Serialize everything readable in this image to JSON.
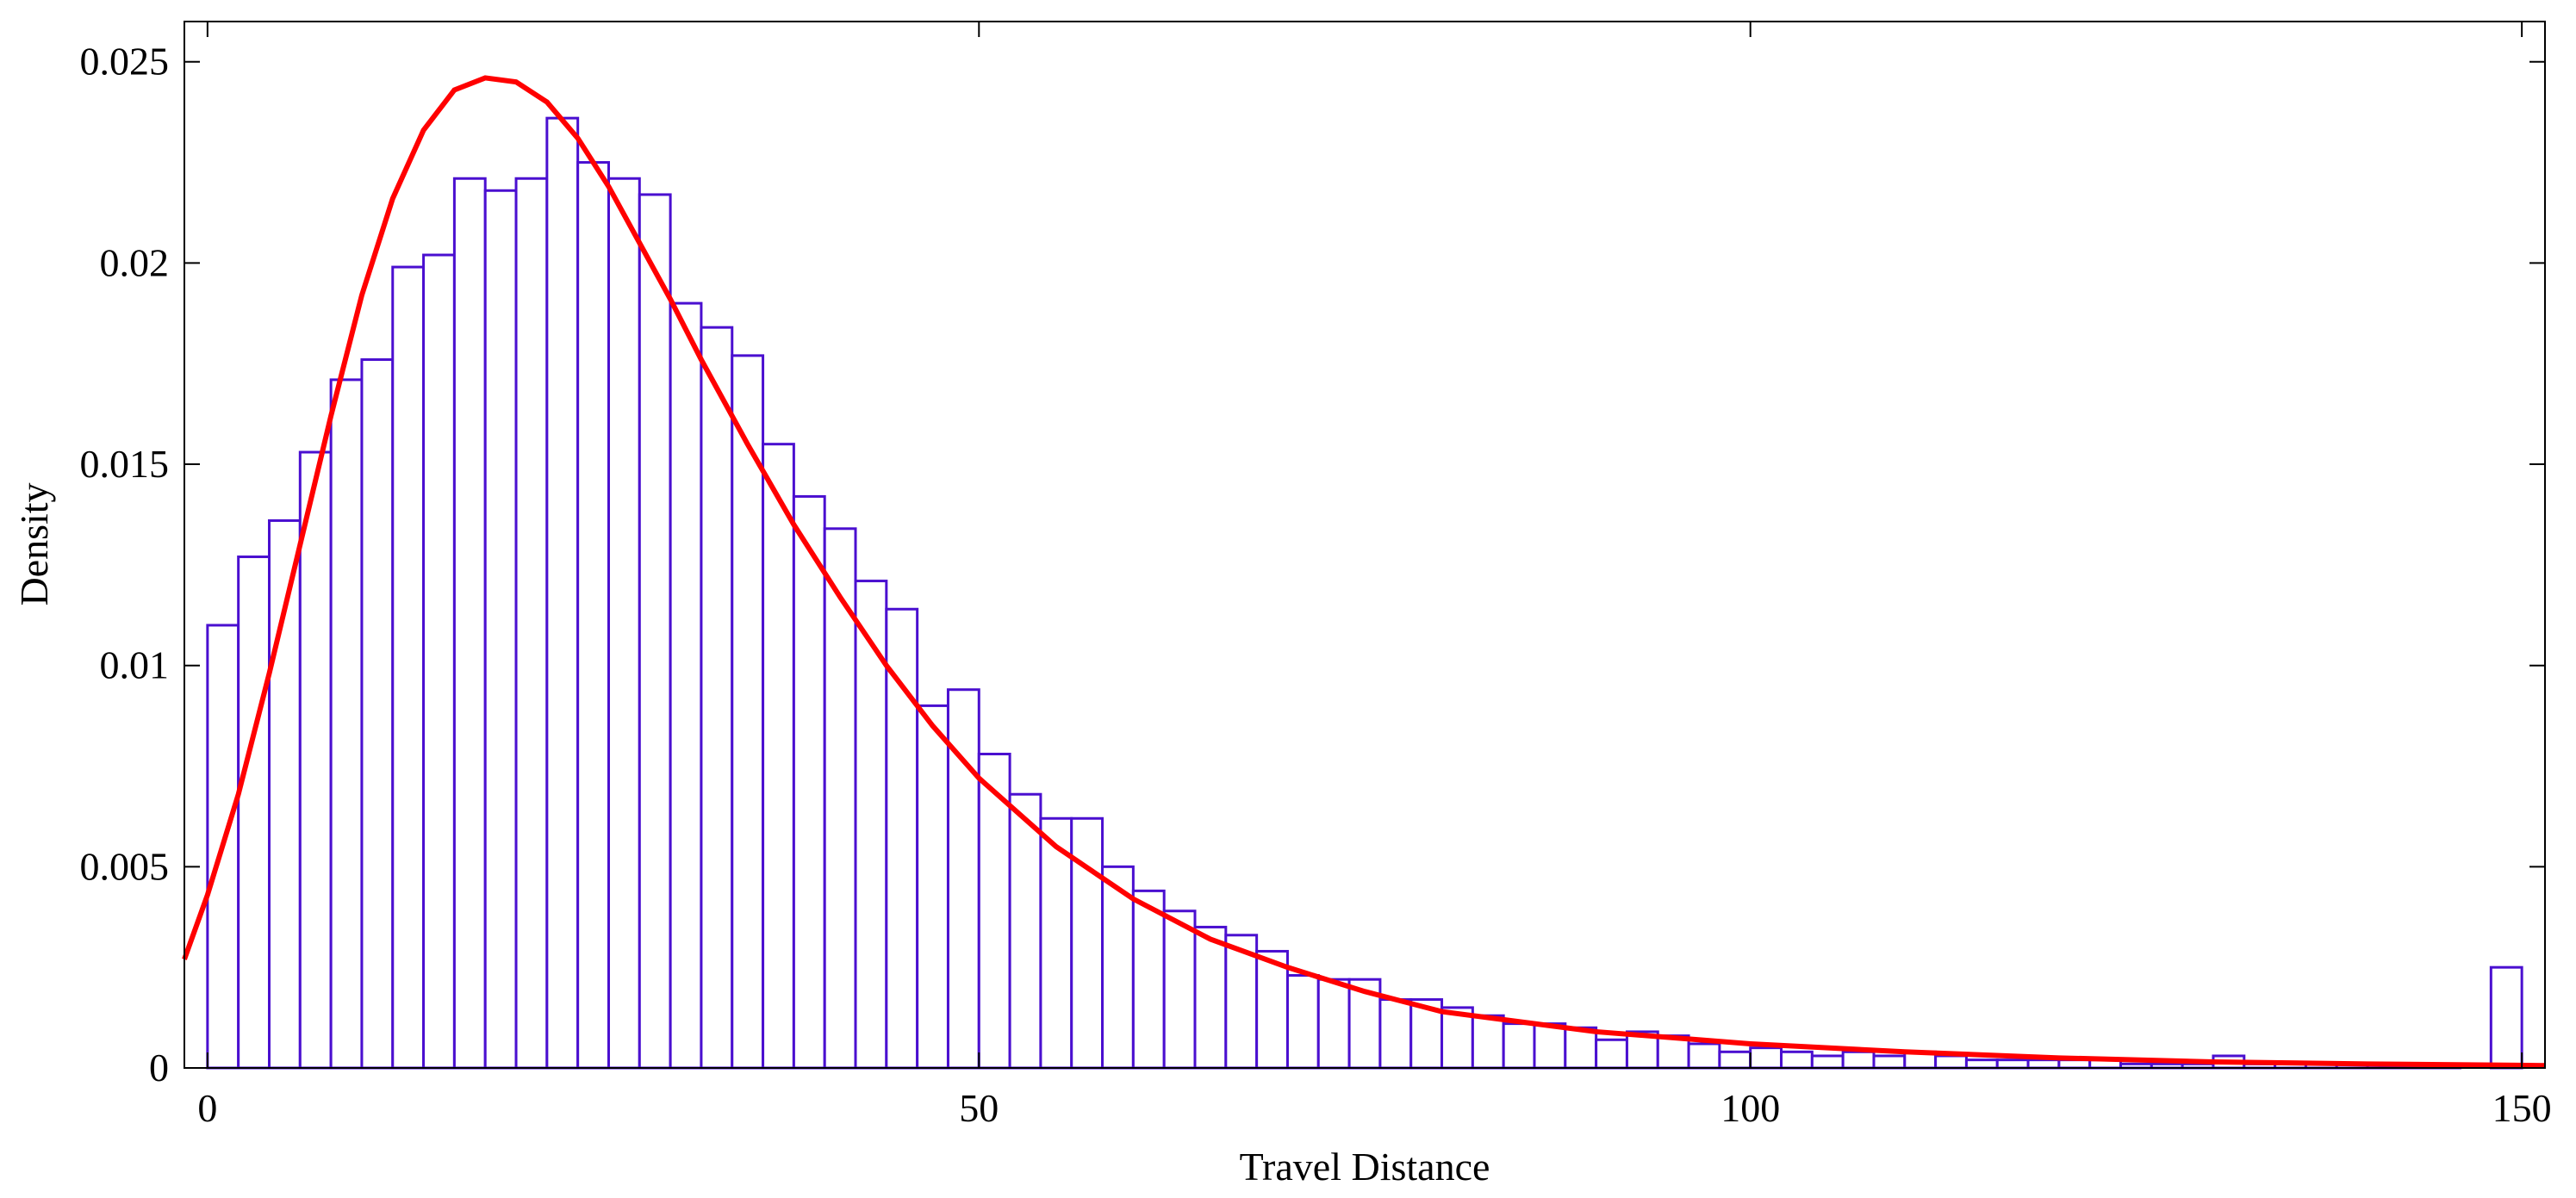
{
  "chart_data": {
    "type": "histogram",
    "xlabel": "Travel Distance",
    "ylabel": "Density",
    "bins": [
      0,
      2,
      4,
      6,
      8,
      10,
      12,
      14,
      16,
      18,
      20,
      22,
      24,
      26,
      28,
      30,
      32,
      34,
      36,
      38,
      40,
      42,
      44,
      46,
      48,
      50,
      52,
      54,
      56,
      58,
      60,
      62,
      64,
      66,
      68,
      70,
      72,
      74,
      76,
      78,
      80,
      82,
      84,
      86,
      88,
      90,
      92,
      94,
      96,
      98,
      100,
      102,
      104,
      106,
      108,
      110,
      112,
      114,
      116,
      118,
      120,
      122,
      124,
      126,
      128,
      130,
      132,
      134,
      136,
      138,
      140,
      142,
      144,
      146,
      148,
      150
    ],
    "values": [
      0.011,
      0.0127,
      0.0136,
      0.0153,
      0.0171,
      0.0176,
      0.0199,
      0.0202,
      0.0221,
      0.0218,
      0.0221,
      0.0236,
      0.0225,
      0.0221,
      0.0217,
      0.019,
      0.0184,
      0.0177,
      0.0155,
      0.0142,
      0.0134,
      0.0121,
      0.0114,
      0.009,
      0.0094,
      0.0078,
      0.0068,
      0.0062,
      0.0062,
      0.005,
      0.0044,
      0.0039,
      0.0035,
      0.0033,
      0.0029,
      0.0023,
      0.0022,
      0.0022,
      0.0017,
      0.0017,
      0.0015,
      0.0013,
      0.0011,
      0.0011,
      0.001,
      0.0007,
      0.0009,
      0.0008,
      0.0006,
      0.0004,
      0.0005,
      0.0004,
      0.0003,
      0.0004,
      0.0003,
      0.0004,
      0.0003,
      0.0002,
      0.0002,
      0.0002,
      0.0002,
      0.0002,
      0.0001,
      0.0001,
      0.0001,
      0.0003,
      0.0001,
      0.0001,
      0.0001,
      0.0001,
      0.0001,
      0.0001,
      0.0001,
      0,
      0.0025
    ],
    "color": "#4a0fd0",
    "curve": {
      "color": "#ff0000",
      "x": [
        -1.5,
        0,
        2,
        4,
        6,
        8,
        10,
        12,
        14,
        16,
        18,
        20,
        22,
        24,
        26,
        28,
        30,
        32,
        35,
        38,
        41,
        44,
        47,
        50,
        55,
        60,
        65,
        70,
        75,
        80,
        90,
        100,
        110,
        120,
        130,
        140,
        151.5
      ],
      "y": [
        0.0027,
        0.0043,
        0.0068,
        0.0098,
        0.013,
        0.0162,
        0.0192,
        0.0216,
        0.0233,
        0.0243,
        0.0246,
        0.0245,
        0.024,
        0.0231,
        0.0219,
        0.0205,
        0.0191,
        0.0176,
        0.0155,
        0.0135,
        0.0117,
        0.01,
        0.0085,
        0.0072,
        0.0055,
        0.0042,
        0.0032,
        0.0025,
        0.0019,
        0.0014,
        0.0009,
        0.0006,
        0.0004,
        0.00025,
        0.00015,
        0.0001,
        6e-05
      ]
    },
    "xlim": [
      -1.5,
      151.5
    ],
    "ylim": [
      0,
      0.026
    ],
    "xticks": [
      0,
      50,
      100,
      150
    ],
    "yticks": [
      0,
      0.005,
      0.01,
      0.015,
      0.02,
      0.025
    ]
  }
}
